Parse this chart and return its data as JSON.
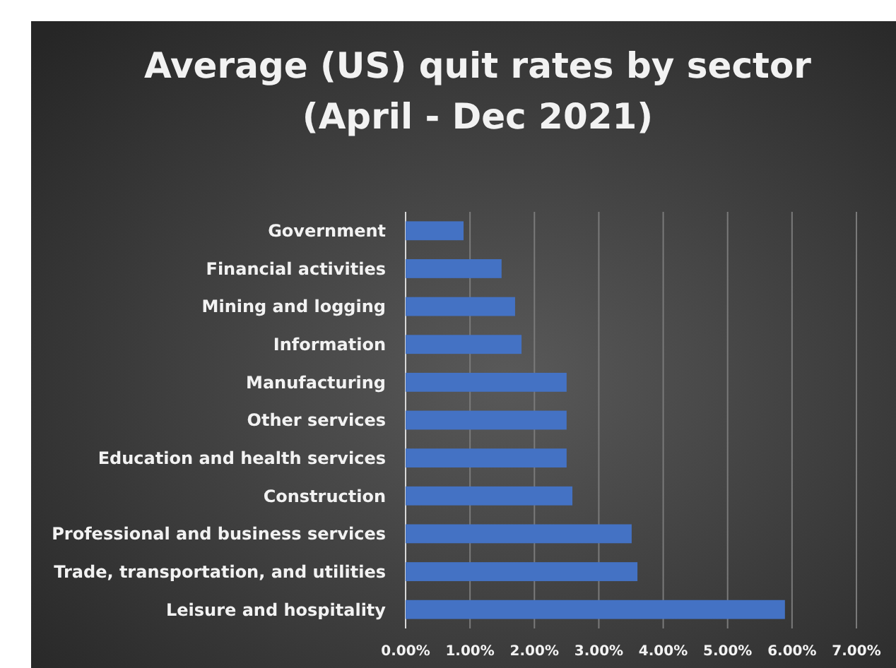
{
  "chart_data": {
    "type": "bar",
    "orientation": "horizontal",
    "title": "Average (US) quit rates by sector\n(April - Dec 2021)",
    "categories": [
      "Government",
      "Financial activities",
      "Mining and logging",
      "Information",
      "Manufacturing",
      "Other services",
      "Education and health services",
      "Construction",
      "Professional and business services",
      "Trade, transportation, and utilities",
      "Leisure and hospitality"
    ],
    "values": [
      0.9,
      1.49,
      1.7,
      1.8,
      2.5,
      2.5,
      2.5,
      2.59,
      3.51,
      3.6,
      5.89
    ],
    "color": "#4472c4",
    "xlim": [
      0,
      7
    ],
    "xticks": [
      {
        "value": 0,
        "label": "0.00%"
      },
      {
        "value": 1,
        "label": "1.00%"
      },
      {
        "value": 2,
        "label": "2.00%"
      },
      {
        "value": 3,
        "label": "3.00%"
      },
      {
        "value": 4,
        "label": "4.00%"
      },
      {
        "value": 5,
        "label": "5.00%"
      },
      {
        "value": 6,
        "label": "6.00%"
      },
      {
        "value": 7,
        "label": "7.00%"
      }
    ],
    "grid": "x"
  }
}
